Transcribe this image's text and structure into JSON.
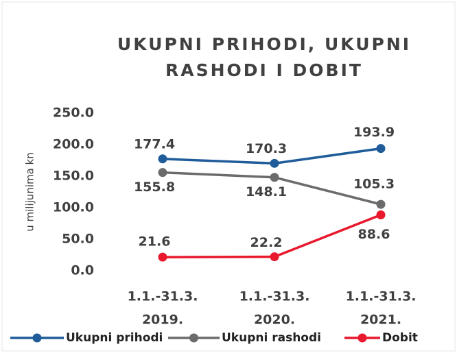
{
  "chart_data": {
    "type": "line",
    "title": [
      "UKUPNI PRIHODI, UKUPNI",
      "RASHODI I DOBIT"
    ],
    "y_label": "u milijunima kn",
    "categories": [
      [
        "1.1.-31.3.",
        "2019."
      ],
      [
        "1.1.-31.3.",
        "2020."
      ],
      [
        "1.1.-31.3.",
        "2021."
      ]
    ],
    "series": [
      {
        "name": "Ukupni prihodi",
        "color": "#1f5c99",
        "values": [
          177.4,
          170.3,
          193.9
        ]
      },
      {
        "name": "Ukupni rashodi",
        "color": "#6b6b6b",
        "values": [
          155.8,
          148.1,
          105.3
        ]
      },
      {
        "name": "Dobit",
        "color": "#e8192c",
        "values": [
          21.6,
          22.2,
          88.6
        ]
      }
    ],
    "ylim": [
      0,
      250
    ],
    "yticks": [
      {
        "value": 0,
        "label": "0.0"
      },
      {
        "value": 50,
        "label": "50.0"
      },
      {
        "value": 100,
        "label": "100.0"
      },
      {
        "value": 150,
        "label": "150.0"
      },
      {
        "value": 200,
        "label": "200.0"
      },
      {
        "value": 250,
        "label": "250.0"
      }
    ],
    "legend": "bottom"
  }
}
